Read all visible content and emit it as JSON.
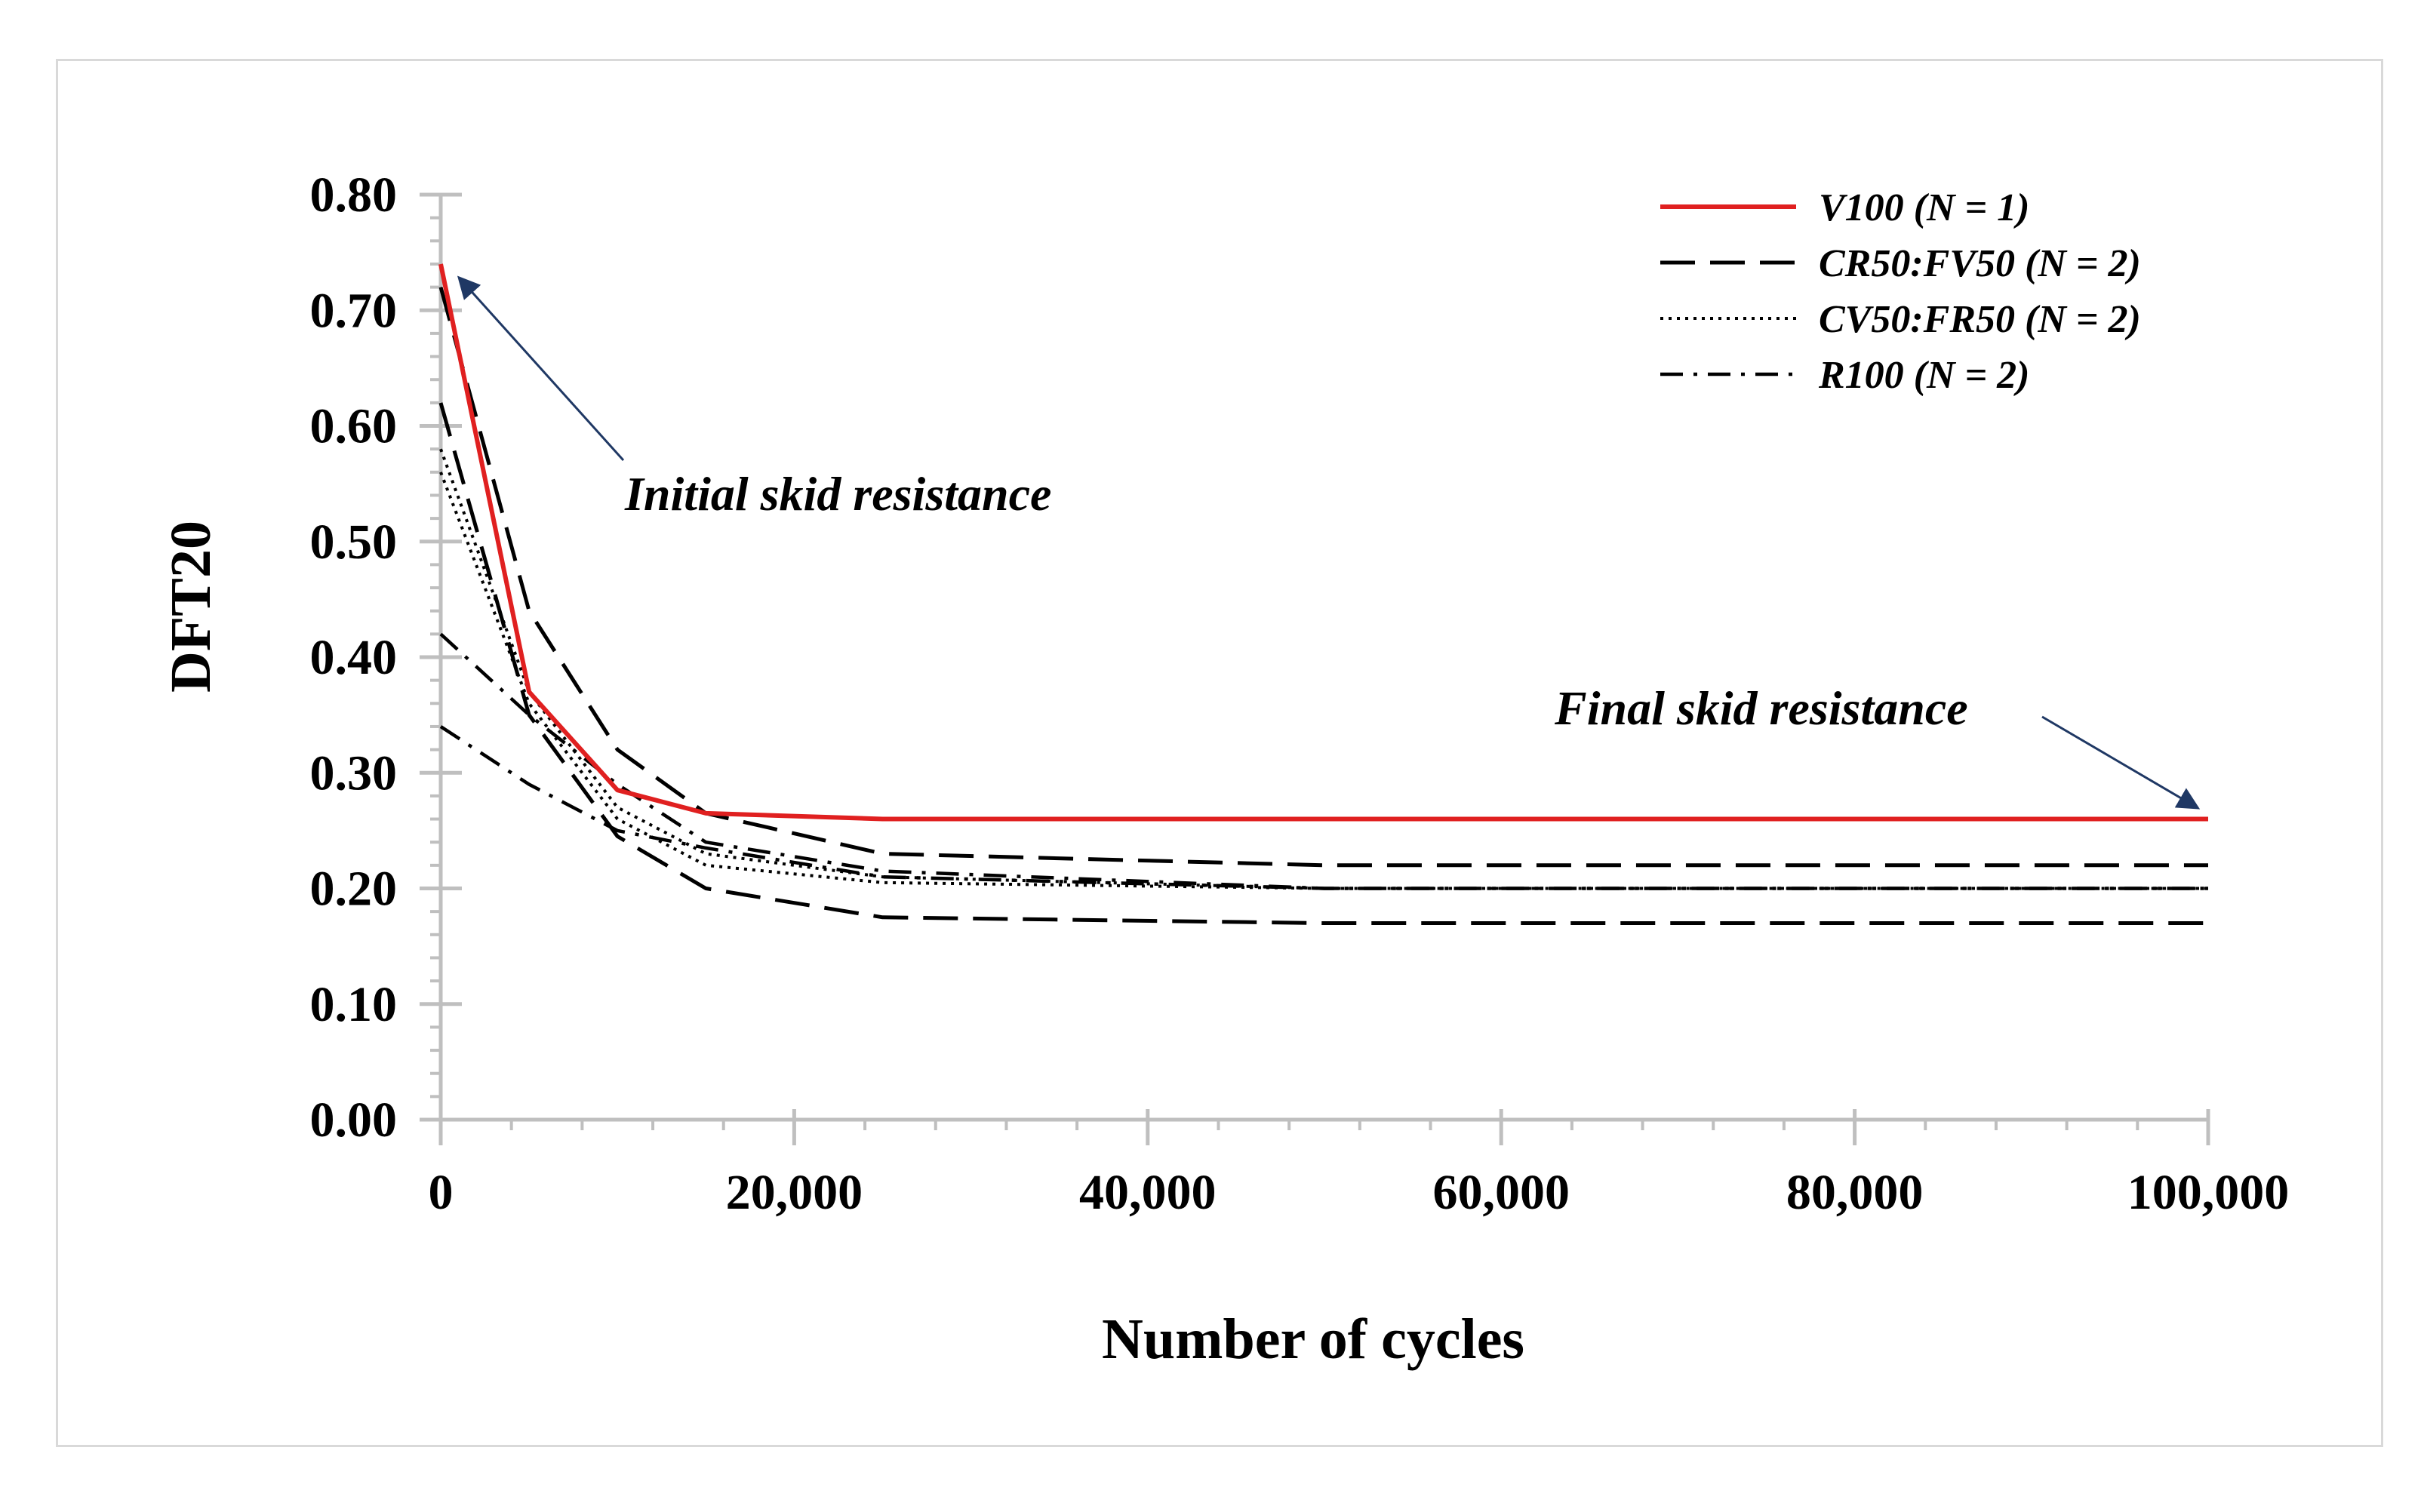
{
  "chart_data": {
    "type": "line",
    "xlabel": "Number of cycles",
    "ylabel": "DFT20",
    "xlim": [
      0,
      100000
    ],
    "ylim": [
      0,
      0.8
    ],
    "x_ticks": [
      0,
      20000,
      40000,
      60000,
      80000,
      100000
    ],
    "x_tick_labels": [
      "0",
      "20,000",
      "40,000",
      "60,000",
      "80,000",
      "100,000"
    ],
    "y_ticks": [
      0,
      0.1,
      0.2,
      0.3,
      0.4,
      0.5,
      0.6,
      0.7,
      0.8
    ],
    "y_tick_labels": [
      "0.00",
      "0.10",
      "0.20",
      "0.30",
      "0.40",
      "0.50",
      "0.60",
      "0.70",
      "0.80"
    ],
    "grid": false,
    "legend_position": "top-right",
    "x": [
      0,
      5000,
      10000,
      15000,
      25000,
      50000,
      100000
    ],
    "series": [
      {
        "name": "V100 (N = 1)",
        "legend_group": "V100",
        "style": "solid",
        "color": "#e02020",
        "values": [
          0.74,
          0.37,
          0.285,
          0.265,
          0.26,
          0.26,
          0.26
        ]
      },
      {
        "name": "CR50:FV50 (N = 2) #1",
        "legend_group": "CR50:FV50",
        "style": "dashed",
        "color": "#000000",
        "values": [
          0.72,
          0.44,
          0.32,
          0.265,
          0.23,
          0.22,
          0.22
        ]
      },
      {
        "name": "CR50:FV50 (N = 2) #2",
        "legend_group": "CR50:FV50",
        "style": "dashed",
        "color": "#000000",
        "values": [
          0.62,
          0.35,
          0.245,
          0.2,
          0.175,
          0.17,
          0.17
        ]
      },
      {
        "name": "CV50:FR50 (N = 2) #1",
        "legend_group": "CV50:FR50",
        "style": "dotted",
        "color": "#000000",
        "values": [
          0.58,
          0.37,
          0.27,
          0.23,
          0.21,
          0.2,
          0.2
        ]
      },
      {
        "name": "CV50:FR50 (N = 2) #2",
        "legend_group": "CV50:FR50",
        "style": "dotted",
        "color": "#000000",
        "values": [
          0.56,
          0.36,
          0.26,
          0.22,
          0.205,
          0.2,
          0.2
        ]
      },
      {
        "name": "R100 (N = 2) #1",
        "legend_group": "R100",
        "style": "dashdot",
        "color": "#000000",
        "values": [
          0.42,
          0.35,
          0.29,
          0.24,
          0.215,
          0.2,
          0.2
        ]
      },
      {
        "name": "R100 (N = 2) #2",
        "legend_group": "R100",
        "style": "dashdot",
        "color": "#000000",
        "values": [
          0.34,
          0.29,
          0.25,
          0.235,
          0.21,
          0.2,
          0.2
        ]
      }
    ],
    "legend": [
      {
        "label": "V100 (N = 1)",
        "style": "solid",
        "color": "#e02020"
      },
      {
        "label": "CR50:FV50 (N = 2)",
        "style": "dashed",
        "color": "#000000"
      },
      {
        "label": "CV50:FR50 (N = 2)",
        "style": "dotted",
        "color": "#000000"
      },
      {
        "label": "R100 (N = 2)",
        "style": "dashdot",
        "color": "#000000"
      }
    ],
    "annotations": [
      {
        "text": "Initial skid resistance",
        "points_to": {
          "x": 0,
          "y": 0.74
        }
      },
      {
        "text": "Final skid resistance",
        "points_to": {
          "x": 100000,
          "y": 0.26
        }
      }
    ],
    "arrow_color": "#1f3864"
  }
}
